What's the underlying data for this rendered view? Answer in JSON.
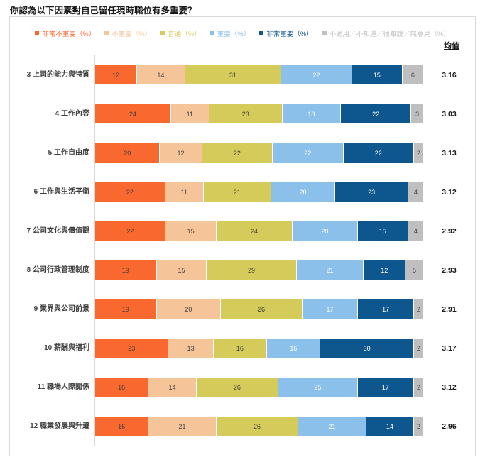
{
  "title": "你認為以下因素對自己留任現時職位有多重要？",
  "mean_column_header": "均值",
  "colors": {
    "very_unimportant": "#F9682F",
    "unimportant": "#F6C499",
    "neutral": "#D4CB5B",
    "important": "#8AC0E9",
    "very_important": "#0E568E",
    "not_applicable": "#BFBFBF",
    "box_border": "#D9D9D9",
    "dark_label": "#3F3F3F"
  },
  "chart_data": {
    "type": "bar",
    "orientation": "horizontal",
    "stacked": true,
    "stacked_to_100_percent": true,
    "grid": false,
    "legend_position": "top-center",
    "title": "你認為以下因素對自己留任現時職位有多重要？",
    "xlabel": "",
    "ylabel": "",
    "categories": [
      "3 上司的能力與特質",
      "4 工作內容",
      "5 工作自由度",
      "6 工作與生活平衡",
      "7 公司文化與價值觀",
      "8 公司行政管理制度",
      "9 業界與公司前景",
      "10 薪酬與福利",
      "11 職場人際關係",
      "12 職業發展與升遷"
    ],
    "series": [
      {
        "name": "非常不重要（%）",
        "color": "#F9682F",
        "text_color": "#3F3F3F",
        "values": [
          12,
          24,
          20,
          22,
          22,
          19,
          19,
          23,
          16,
          16
        ]
      },
      {
        "name": "不重要（%）",
        "color": "#F6C499",
        "text_color": "#3F3F3F",
        "values": [
          14,
          11,
          12,
          11,
          15,
          15,
          20,
          13,
          14,
          21
        ]
      },
      {
        "name": "普通（%）",
        "color": "#D4CB5B",
        "text_color": "#3F3F3F",
        "values": [
          31,
          23,
          22,
          21,
          24,
          29,
          26,
          16,
          26,
          26
        ]
      },
      {
        "name": "重要（%）",
        "color": "#8AC0E9",
        "text_color": "#FFFFFF",
        "values": [
          22,
          18,
          22,
          20,
          20,
          21,
          17,
          16,
          25,
          21
        ]
      },
      {
        "name": "非常重要（%）",
        "color": "#0E568E",
        "text_color": "#FFFFFF",
        "values": [
          15,
          22,
          22,
          23,
          15,
          12,
          17,
          30,
          17,
          14
        ]
      },
      {
        "name": "不適用／不知道／很難說／無意見（%）",
        "color": "#BFBFBF",
        "text_color": "#3F3F3F",
        "values": [
          6,
          3,
          2,
          4,
          4,
          5,
          2,
          2,
          2,
          2
        ]
      }
    ],
    "means_header": "均值",
    "means": [
      "3.16",
      "3.03",
      "3.13",
      "3.12",
      "2.92",
      "2.93",
      "2.91",
      "3.17",
      "3.12",
      "2.96"
    ]
  }
}
